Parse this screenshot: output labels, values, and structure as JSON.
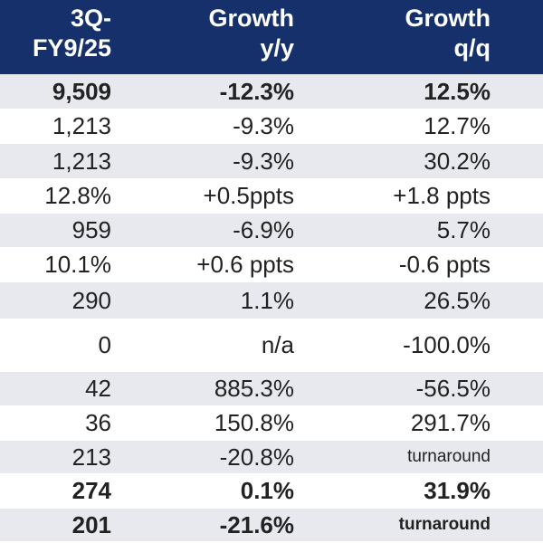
{
  "header": {
    "col1": [
      "3Q-",
      "FY9/25"
    ],
    "col2": [
      "Growth",
      "y/y"
    ],
    "col3": [
      "Growth",
      "q/q"
    ]
  },
  "rows": [
    {
      "v": "9,509",
      "yy": "-12.3%",
      "qq": "12.5%",
      "bold": true,
      "alt": true
    },
    {
      "v": "1,213",
      "yy": "-9.3%",
      "qq": "12.7%",
      "bold": false,
      "alt": false
    },
    {
      "v": "1,213",
      "yy": "-9.3%",
      "qq": "30.2%",
      "bold": false,
      "alt": true
    },
    {
      "v": "12.8%",
      "yy": "+0.5ppts",
      "qq": "+1.8 ppts",
      "bold": false,
      "alt": false
    },
    {
      "v": "959",
      "yy": "-6.9%",
      "qq": "5.7%",
      "bold": false,
      "alt": true
    },
    {
      "v": "10.1%",
      "yy": "+0.6 ppts",
      "qq": "-0.6 ppts",
      "bold": false,
      "alt": false
    },
    {
      "v": "290",
      "yy": "1.1%",
      "qq": "26.5%",
      "bold": false,
      "alt": true
    },
    {
      "v": "0",
      "yy": "n/a",
      "qq": "-100.0%",
      "bold": false,
      "alt": false
    },
    {
      "v": "42",
      "yy": "885.3%",
      "qq": "-56.5%",
      "bold": false,
      "alt": true
    },
    {
      "v": "36",
      "yy": "150.8%",
      "qq": "291.7%",
      "bold": false,
      "alt": false
    },
    {
      "v": "213",
      "yy": "-20.8%",
      "qq": "turnaround",
      "bold": false,
      "alt": true
    },
    {
      "v": "274",
      "yy": "0.1%",
      "qq": "31.9%",
      "bold": true,
      "alt": false
    },
    {
      "v": "201",
      "yy": "-21.6%",
      "qq": "turnaround",
      "bold": true,
      "alt": true
    }
  ],
  "colors": {
    "header_bg": "#15306b",
    "alt_row_bg": "#e7e9ee"
  }
}
